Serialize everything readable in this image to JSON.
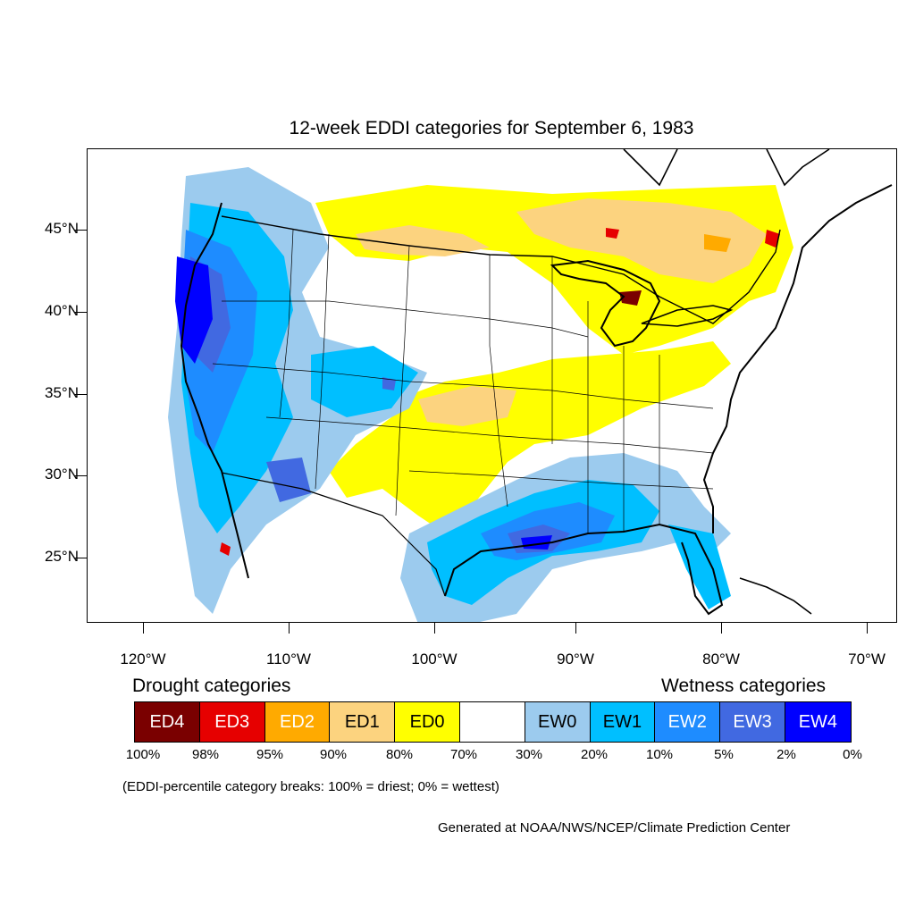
{
  "title": "12-week EDDI categories for September 6, 1983",
  "axes": {
    "latitude_labels": [
      "45°N",
      "40°N",
      "35°N",
      "30°N",
      "25°N"
    ],
    "longitude_labels": [
      "120°W",
      "110°W",
      "100°W",
      "90°W",
      "80°W",
      "70°W"
    ]
  },
  "legend": {
    "drought_heading": "Drought categories",
    "wetness_heading": "Wetness categories",
    "categories": [
      {
        "label": "ED4",
        "color": "#7a0000",
        "text_color": "#ffffff"
      },
      {
        "label": "ED3",
        "color": "#e60000",
        "text_color": "#ffffff"
      },
      {
        "label": "ED2",
        "color": "#ffaa00",
        "text_color": "#ffffff"
      },
      {
        "label": "ED1",
        "color": "#fcd37f",
        "text_color": "#000000"
      },
      {
        "label": "ED0",
        "color": "#ffff00",
        "text_color": "#000000"
      },
      {
        "label": "",
        "color": "#ffffff",
        "text_color": "#000000"
      },
      {
        "label": "EW0",
        "color": "#9ccbee",
        "text_color": "#000000"
      },
      {
        "label": "EW1",
        "color": "#00bfff",
        "text_color": "#000000"
      },
      {
        "label": "EW2",
        "color": "#1e8cff",
        "text_color": "#ffffff"
      },
      {
        "label": "EW3",
        "color": "#4169e1",
        "text_color": "#ffffff"
      },
      {
        "label": "EW4",
        "color": "#0000ff",
        "text_color": "#ffffff"
      }
    ],
    "breaks": [
      "100%",
      "98%",
      "95%",
      "90%",
      "80%",
      "70%",
      "30%",
      "20%",
      "10%",
      "5%",
      "2%",
      "0%"
    ]
  },
  "note": "(EDDI-percentile category breaks: 100% = driest; 0% = wettest)",
  "credit": "Generated at NOAA/NWS/NCEP/Climate Prediction Center"
}
